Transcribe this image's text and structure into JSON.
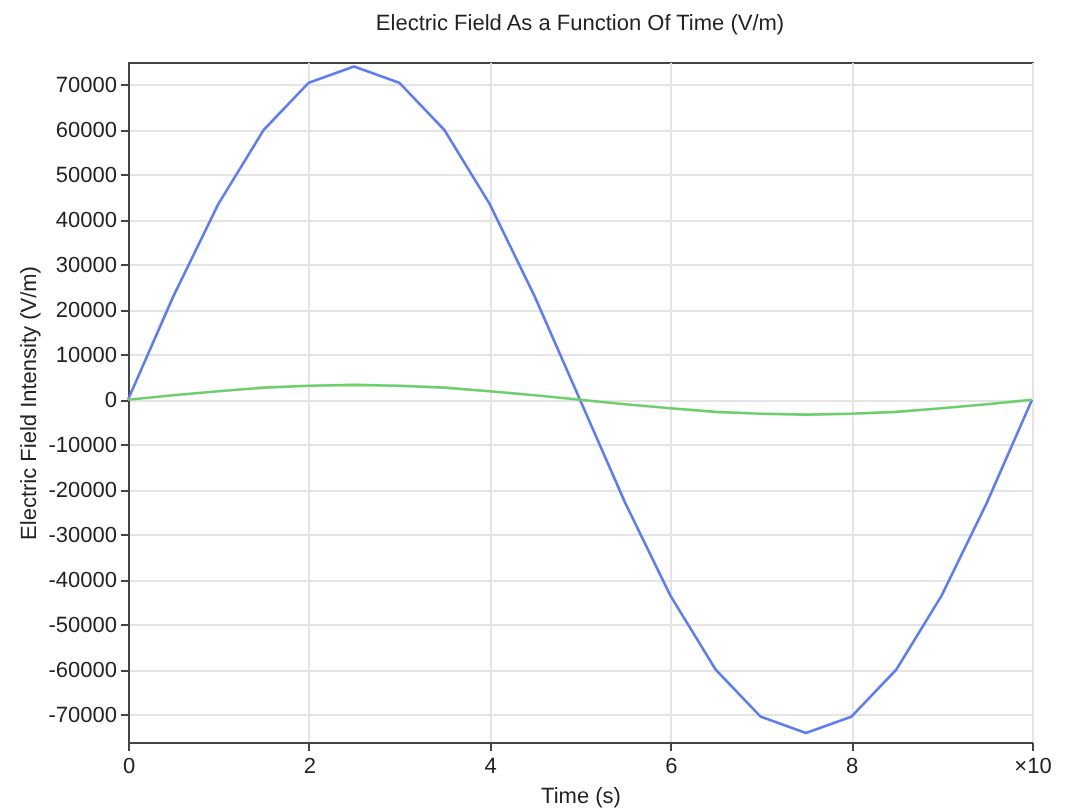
{
  "chart_data": {
    "type": "line",
    "title": "Electric Field As a Function Of Time (V/m)",
    "xlabel": "Time (s)",
    "ylabel": "Electric Field Intensity (V/m)",
    "x": [
      0,
      0.5,
      1,
      1.5,
      2,
      2.5,
      3,
      3.5,
      4,
      4.5,
      5,
      5.5,
      6,
      6.5,
      7,
      7.5,
      8,
      8.5,
      9,
      9.5,
      10
    ],
    "series": [
      {
        "color": "#5b7cf5",
        "values": [
          0,
          22900,
          43500,
          59900,
          70400,
          74000,
          70400,
          59900,
          43500,
          22900,
          0,
          -22900,
          -43500,
          -59900,
          -70400,
          -74000,
          -70400,
          -59900,
          -43500,
          -22900,
          0
        ]
      },
      {
        "color": "#6ccf6c",
        "values": [
          0,
          1000,
          1900,
          2700,
          3100,
          3300,
          3100,
          2700,
          1900,
          1000,
          0,
          -1000,
          -1900,
          -2700,
          -3100,
          -3300,
          -3100,
          -2700,
          -1900,
          -1000,
          0
        ]
      }
    ],
    "xlim": [
      0,
      10
    ],
    "xticks": [
      0,
      2,
      4,
      6,
      8,
      {
        "value": 10,
        "label": "×10"
      }
    ],
    "ylim": [
      -76000,
      75000
    ],
    "yticks": [
      -70000,
      -60000,
      -50000,
      -40000,
      -30000,
      -20000,
      -10000,
      0,
      10000,
      20000,
      30000,
      40000,
      50000,
      60000,
      70000
    ],
    "grid": true,
    "legend": false,
    "marker": "none",
    "line_style": "solid"
  }
}
